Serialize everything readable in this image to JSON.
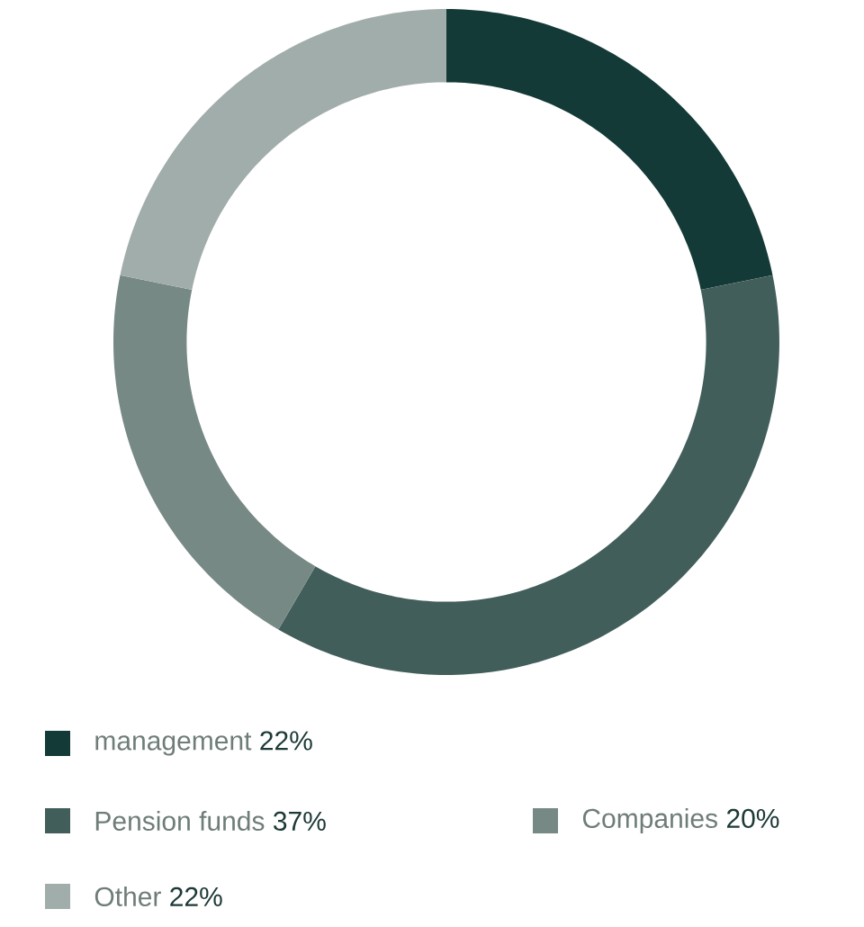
{
  "chart_data": {
    "type": "donut",
    "categories": [
      "management",
      "Pension funds",
      "Companies",
      "Other"
    ],
    "values": [
      22,
      37,
      20,
      22
    ],
    "value_labels": [
      "22%",
      "37%",
      "20%",
      "22%"
    ],
    "colors": [
      "#133a37",
      "#425e5b",
      "#778985",
      "#a1adab"
    ],
    "legend": "bottom"
  }
}
